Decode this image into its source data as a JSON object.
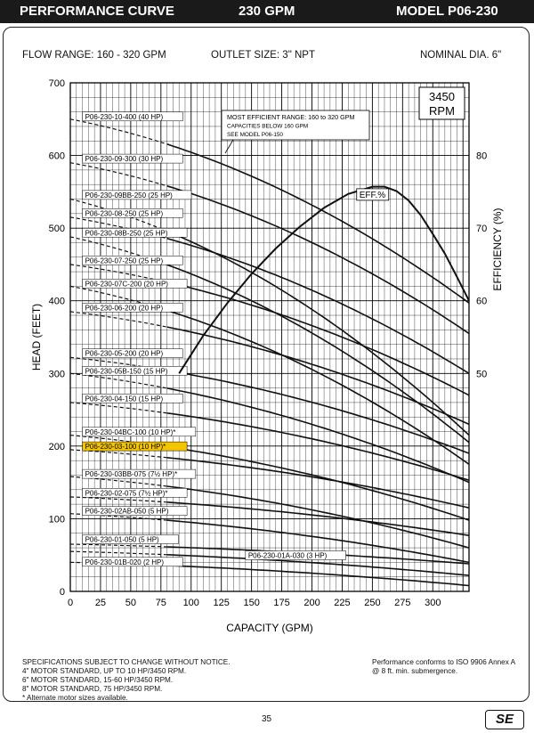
{
  "header": {
    "left": "PERFORMANCE CURVE",
    "center": "230 GPM",
    "right": "MODEL  P06-230"
  },
  "specs": {
    "flow_range": "FLOW RANGE: 160 - 320 GPM",
    "outlet": "OUTLET SIZE: 3\" NPT",
    "nominal": "NOMINAL DIA. 6\""
  },
  "footer": {
    "left_lines": [
      "SPECIFICATIONS SUBJECT TO CHANGE WITHOUT NOTICE.",
      "4\" MOTOR STANDARD, UP TO 10 HP/3450 RPM.",
      "6\" MOTOR STANDARD, 15-60 HP/3450 RPM.",
      "8\" MOTOR STANDARD, 75 HP/3450 RPM.",
      "* Alternate motor sizes available."
    ],
    "right_lines": [
      "Performance conforms to ISO 9906 Annex A",
      "@ 8 ft. min. submergence."
    ],
    "page_number": "35",
    "logo_text": "SE"
  },
  "chart_data": {
    "type": "line",
    "xlabel": "CAPACITY (GPM)",
    "ylabel": "HEAD (FEET)",
    "y2label": "EFFICIENCY (%)",
    "xlim": [
      0,
      330
    ],
    "ylim": [
      0,
      700
    ],
    "x_ticks": [
      0,
      25,
      50,
      75,
      100,
      125,
      150,
      175,
      200,
      225,
      250,
      275,
      300
    ],
    "y_ticks": [
      0,
      100,
      200,
      300,
      400,
      500,
      600,
      700
    ],
    "y2_ticks": [
      50,
      60,
      70,
      80
    ],
    "rpm_box": [
      "3450",
      "RPM"
    ],
    "note_lines": [
      "MOST EFFICIENT RANGE: 160 to 320 GPM",
      "CAPACITIES BELOW 160 GPM",
      "SEE  MODEL P06-150"
    ],
    "eff_label": "EFF.%",
    "highlight_color": "#f5c400",
    "curve_color": "#111111",
    "series": [
      {
        "name": "P06-230-10-400 (40 HP)",
        "shutoff": 650,
        "end": 397,
        "label_head": 650
      },
      {
        "name": "P06-230-09-300 (30 HP)",
        "shutoff": 590,
        "end": 355,
        "label_head": 592
      },
      {
        "name": "P06-230-09BB-250 (25 HP)",
        "shutoff": 540,
        "end": 215,
        "label_head": 542
      },
      {
        "name": "P06-230-08-250 (25 HP)",
        "shutoff": 515,
        "end": 300,
        "label_head": 517
      },
      {
        "name": "P06-230-08B-250 (25 HP)",
        "shutoff": 488,
        "end": 205,
        "label_head": 490
      },
      {
        "name": "P06-230-07-250 (25 HP)",
        "shutoff": 450,
        "end": 270,
        "label_head": 452
      },
      {
        "name": "P06-230-07C-200 (20 HP)",
        "shutoff": 420,
        "end": 175,
        "label_head": 420
      },
      {
        "name": "P06-230-06-200 (20 HP)",
        "shutoff": 385,
        "end": 230,
        "label_head": 387
      },
      {
        "name": "P06-230-05-200 (20 HP)",
        "shutoff": 322,
        "end": 190,
        "label_head": 324
      },
      {
        "name": "P06-230-05B-150 (15 HP)",
        "shutoff": 300,
        "end": 150,
        "label_head": 300
      },
      {
        "name": "P06-230-04-150 (15 HP)",
        "shutoff": 260,
        "end": 153,
        "label_head": 262
      },
      {
        "name": "P06-230-04BC-100 (10 HP)*",
        "shutoff": 215,
        "end": 98,
        "label_head": 216
      },
      {
        "name": "P06-230-03-100 (10 HP)*",
        "shutoff": 195,
        "end": 115,
        "label_head": 196,
        "highlight": true
      },
      {
        "name": "P06-230-03BB-075 (7½ HP)*",
        "shutoff": 158,
        "end": 60,
        "label_head": 158
      },
      {
        "name": "P06-230-02-075 (7½ HP)*",
        "shutoff": 130,
        "end": 77,
        "label_head": 132
      },
      {
        "name": "P06-230-02AB-050 (5 HP)",
        "shutoff": 107,
        "end": 40,
        "label_head": 107
      },
      {
        "name": "P06-230-01-050 (5 HP)",
        "shutoff": 65,
        "end": 38,
        "label_head": 68
      },
      {
        "name": "P06-230-01A-030 (3 HP)",
        "shutoff": 55,
        "end": 22,
        "label_head": 46,
        "label_x": 145
      },
      {
        "name": "P06-230-01B-020 (2 HP)",
        "shutoff": 40,
        "end": 8,
        "label_head": 37
      }
    ],
    "efficiency": {
      "x": [
        90,
        110,
        130,
        150,
        170,
        190,
        210,
        230,
        250,
        260,
        270,
        280,
        290,
        300,
        310,
        320,
        330
      ],
      "y": [
        50,
        55.2,
        59.7,
        63.7,
        67.2,
        70.2,
        72.8,
        74.7,
        75.7,
        75.7,
        75.1,
        73.8,
        71.8,
        69.2,
        66.5,
        63.3,
        60
      ]
    }
  }
}
